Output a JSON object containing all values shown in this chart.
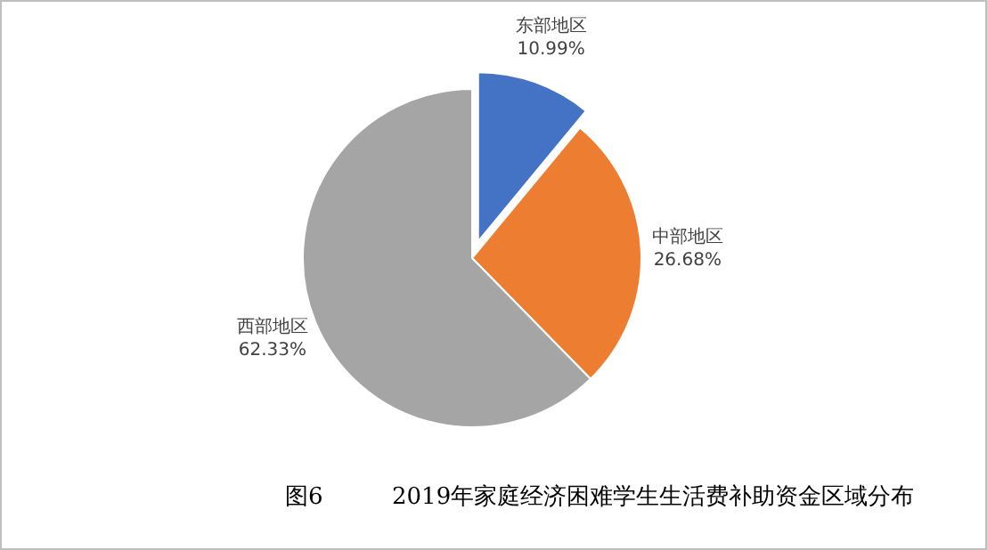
{
  "chart_data": {
    "type": "pie",
    "title": "2019年家庭经济困难学生生活费补助资金区域分布",
    "annotations": [
      "图6"
    ],
    "categories": [
      "东部地区",
      "中部地区",
      "西部地区"
    ],
    "values": [
      10.99,
      26.68,
      62.33
    ],
    "value_labels": [
      "10.99%",
      "26.68%",
      "62.33%"
    ],
    "colors": [
      "#4472c4",
      "#ed7d31",
      "#a5a5a5"
    ]
  }
}
